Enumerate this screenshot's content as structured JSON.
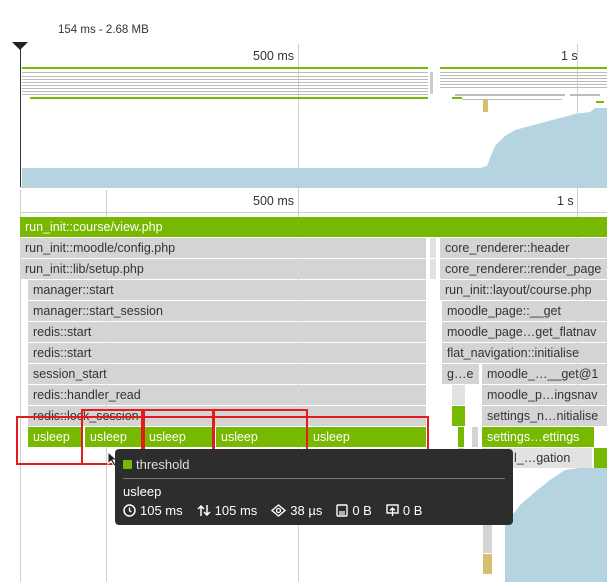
{
  "overview": {
    "range_label": "154 ms - 2.68 MB",
    "tick_500": "500 ms",
    "tick_1s": "1 s"
  },
  "flame": {
    "tick_500": "500 ms",
    "tick_1s": "1 s",
    "rows": {
      "root": "run_init::course/view.php",
      "config": "run_init::moodle/config.php",
      "setup": "run_init::lib/setup.php",
      "manager_start": "manager::start",
      "manager_start_session": "manager::start_session",
      "redis_start_1": "redis::start",
      "redis_start_2": "redis::start",
      "session_start": "session_start",
      "handler_read": "redis::handler_read",
      "lock_session": "redis::lock_session",
      "usleep_labels": [
        "usleep",
        "usleep",
        "usleep",
        "usleep",
        "usleep"
      ],
      "core_renderer_header": "core_renderer::header",
      "core_renderer_render_page": "core_renderer::render_page",
      "layout_course": "run_init::layout/course.php",
      "moodle_page_get": "moodle_page::__get",
      "moodle_page_get_flatnav": "moodle_page…get_flatnav",
      "flat_navigation_initialise": "flat_navigation::initialise",
      "ge": "g…e",
      "moodle_get1": "moodle_…__get@1",
      "moodle_ingsnav": "moodle_p…ingsnav",
      "settings_nitialise": "settings_n…nitialise",
      "settings_ettings": "settings…ettings",
      "gation": "l_…gation"
    }
  },
  "tooltip": {
    "category": "threshold",
    "name": "usleep",
    "total_time": "105 ms",
    "self_time": "105 ms",
    "cpu": "38 µs",
    "memory": "0 B",
    "peak_memory": "0 B"
  },
  "colors": {
    "green": "#77b800",
    "bar_grey": "#d4d4d4",
    "overview_blue": "#b5d3e0",
    "highlight_red": "#e41b1b",
    "tooltip_bg": "#2d2d2d"
  }
}
